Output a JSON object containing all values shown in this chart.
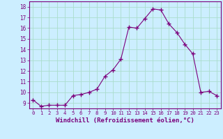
{
  "x": [
    0,
    1,
    2,
    3,
    4,
    5,
    6,
    7,
    8,
    9,
    10,
    11,
    12,
    13,
    14,
    15,
    16,
    17,
    18,
    19,
    20,
    21,
    22,
    23
  ],
  "y": [
    9.3,
    8.7,
    8.8,
    8.8,
    8.8,
    9.7,
    9.8,
    10.0,
    10.3,
    11.5,
    12.1,
    13.1,
    16.1,
    16.0,
    16.9,
    17.8,
    17.7,
    16.4,
    15.6,
    14.5,
    13.6,
    10.0,
    10.1,
    9.7
  ],
  "line_color": "#7b007b",
  "marker": "+",
  "marker_size": 4,
  "bg_color": "#cceeff",
  "grid_color": "#aaddcc",
  "xlabel": "Windchill (Refroidissement éolien,°C)",
  "xlabel_fontsize": 6.5,
  "ylabel_ticks": [
    9,
    10,
    11,
    12,
    13,
    14,
    15,
    16,
    17,
    18
  ],
  "xtick_fontsize": 5.2,
  "ytick_fontsize": 5.5,
  "xlim": [
    -0.5,
    23.5
  ],
  "ylim": [
    8.5,
    18.5
  ]
}
